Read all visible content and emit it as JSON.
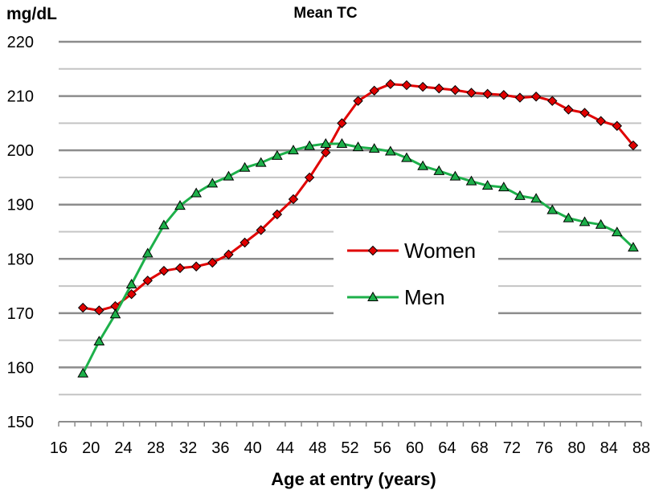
{
  "chart_data": {
    "type": "line",
    "title": "Mean TC",
    "ylabel": "mg/dL",
    "xlabel": "Age at entry (years)",
    "xlim": [
      16,
      88
    ],
    "ylim": [
      150,
      220
    ],
    "x_ticks": [
      16,
      20,
      24,
      28,
      32,
      36,
      40,
      44,
      48,
      52,
      56,
      60,
      64,
      68,
      72,
      76,
      80,
      84,
      88
    ],
    "y_ticks": [
      150,
      160,
      170,
      180,
      190,
      200,
      210,
      220
    ],
    "grid": true,
    "legend_position": "center-right",
    "x": [
      19,
      21,
      23,
      25,
      27,
      29,
      31,
      33,
      35,
      37,
      39,
      41,
      43,
      45,
      47,
      49,
      51,
      53,
      55,
      57,
      59,
      61,
      63,
      65,
      67,
      69,
      71,
      73,
      75,
      77,
      79,
      81,
      83,
      85,
      87
    ],
    "series": [
      {
        "name": "Women",
        "color": "#e00000",
        "marker": "diamond",
        "values": [
          171.0,
          170.5,
          171.3,
          173.5,
          176.0,
          177.8,
          178.3,
          178.6,
          179.3,
          180.8,
          183.0,
          185.3,
          188.2,
          191.0,
          195.0,
          199.6,
          205.0,
          209.1,
          211.0,
          212.2,
          212.0,
          211.7,
          211.4,
          211.1,
          210.6,
          210.4,
          210.2,
          209.7,
          209.9,
          209.1,
          207.5,
          206.9,
          205.4,
          204.5,
          200.9
        ]
      },
      {
        "name": "Men",
        "color": "#1db04a",
        "marker": "triangle",
        "values": [
          158.9,
          164.8,
          169.8,
          175.3,
          181.0,
          186.2,
          189.8,
          192.1,
          193.9,
          195.2,
          196.8,
          197.7,
          199.0,
          200.0,
          200.8,
          201.2,
          201.2,
          200.6,
          200.3,
          199.8,
          198.6,
          197.1,
          196.2,
          195.2,
          194.3,
          193.5,
          193.2,
          191.6,
          191.1,
          189.0,
          187.5,
          186.8,
          186.3,
          184.9,
          182.1
        ]
      }
    ]
  }
}
